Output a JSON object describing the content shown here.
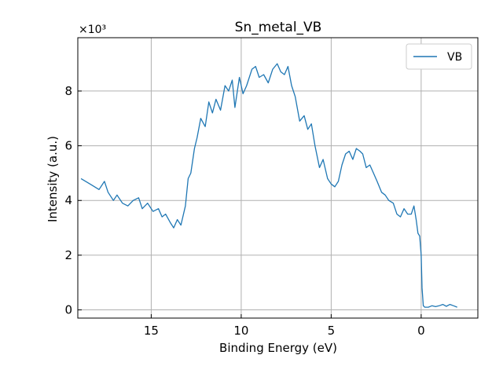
{
  "chart_data": {
    "type": "line",
    "title": "Sn_metal_VB",
    "xlabel": "Binding Energy (eV)",
    "ylabel": "Intensity (a.u.)",
    "y_multiplier_label": "×10³",
    "y_multiplier": 1000,
    "x_reversed": true,
    "xlim": [
      19.08,
      -3.15
    ],
    "ylim": [
      -300,
      9950
    ],
    "xticks": [
      15,
      10,
      5,
      0
    ],
    "yticks": [
      0,
      2000,
      4000,
      6000,
      8000
    ],
    "ytick_labels": [
      "0",
      "2",
      "4",
      "6",
      "8"
    ],
    "grid": true,
    "legend_position": "top-right",
    "series": [
      {
        "name": "VB",
        "color": "#1f77b4",
        "x": [
          18.9,
          18.4,
          17.9,
          17.6,
          17.4,
          17.1,
          16.9,
          16.6,
          16.3,
          16.0,
          15.7,
          15.5,
          15.2,
          14.9,
          14.6,
          14.4,
          14.2,
          13.95,
          13.75,
          13.55,
          13.35,
          13.1,
          12.95,
          12.8,
          12.6,
          12.45,
          12.25,
          12.0,
          11.8,
          11.6,
          11.4,
          11.15,
          10.9,
          10.7,
          10.5,
          10.35,
          10.1,
          9.9,
          9.7,
          9.4,
          9.2,
          9.0,
          8.75,
          8.5,
          8.25,
          8.0,
          7.8,
          7.6,
          7.4,
          7.2,
          7.0,
          6.75,
          6.5,
          6.3,
          6.1,
          5.9,
          5.65,
          5.45,
          5.2,
          5.0,
          4.8,
          4.6,
          4.4,
          4.2,
          4.0,
          3.8,
          3.6,
          3.4,
          3.25,
          3.05,
          2.85,
          2.65,
          2.45,
          2.2,
          2.0,
          1.8,
          1.55,
          1.35,
          1.15,
          0.95,
          0.75,
          0.55,
          0.4,
          0.28,
          0.18,
          0.08,
          0.0,
          -0.05,
          -0.12,
          -0.2,
          -0.4,
          -0.6,
          -0.8,
          -1.0,
          -1.2,
          -1.4,
          -1.6,
          -1.8,
          -2.0
        ],
        "y": [
          4800,
          4600,
          4400,
          4700,
          4300,
          4000,
          4200,
          3900,
          3800,
          4000,
          4100,
          3700,
          3900,
          3600,
          3700,
          3400,
          3500,
          3200,
          3000,
          3300,
          3100,
          3800,
          4800,
          5000,
          5900,
          6300,
          7000,
          6700,
          7600,
          7200,
          7700,
          7300,
          8200,
          8000,
          8400,
          7400,
          8500,
          7900,
          8200,
          8800,
          8900,
          8500,
          8600,
          8300,
          8800,
          9000,
          8700,
          8600,
          8900,
          8200,
          7800,
          6900,
          7100,
          6600,
          6800,
          6000,
          5200,
          5500,
          4800,
          4600,
          4500,
          4700,
          5300,
          5700,
          5800,
          5500,
          5900,
          5800,
          5700,
          5200,
          5300,
          5000,
          4700,
          4300,
          4200,
          4000,
          3900,
          3500,
          3400,
          3700,
          3500,
          3500,
          3800,
          3300,
          2800,
          2700,
          2000,
          800,
          150,
          100,
          100,
          150,
          120,
          150,
          200,
          130,
          200,
          150,
          100
        ]
      }
    ]
  }
}
